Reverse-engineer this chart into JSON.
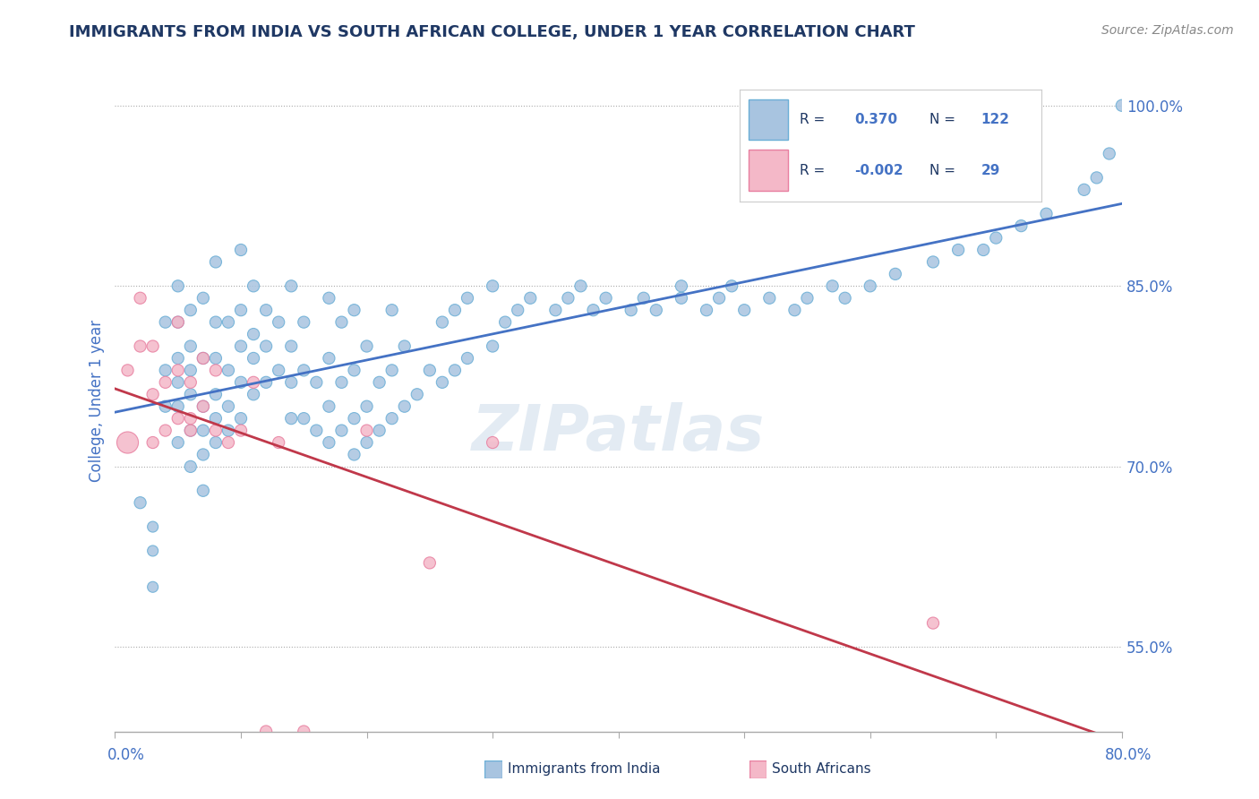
{
  "title": "IMMIGRANTS FROM INDIA VS SOUTH AFRICAN COLLEGE, UNDER 1 YEAR CORRELATION CHART",
  "source": "Source: ZipAtlas.com",
  "ylabel": "College, Under 1 year",
  "right_yticks": [
    55.0,
    70.0,
    85.0,
    100.0
  ],
  "xmin": 0.0,
  "xmax": 0.8,
  "ymin": 0.48,
  "ymax": 1.03,
  "blue_color": "#a8c4e0",
  "blue_edge": "#6aaed6",
  "pink_color": "#f4b8c8",
  "pink_edge": "#e87fa0",
  "trend_blue": "#4472c4",
  "trend_pink": "#c0384a",
  "watermark": "ZIPatlas",
  "title_color": "#1f3864",
  "axis_color": "#4472c4",
  "legend_box_blue": "#a8c4e0",
  "legend_box_pink": "#f4b8c8",
  "blue_x": [
    0.02,
    0.03,
    0.03,
    0.03,
    0.04,
    0.04,
    0.04,
    0.05,
    0.05,
    0.05,
    0.05,
    0.05,
    0.05,
    0.06,
    0.06,
    0.06,
    0.06,
    0.06,
    0.06,
    0.07,
    0.07,
    0.07,
    0.07,
    0.07,
    0.07,
    0.08,
    0.08,
    0.08,
    0.08,
    0.08,
    0.08,
    0.09,
    0.09,
    0.09,
    0.09,
    0.1,
    0.1,
    0.1,
    0.1,
    0.1,
    0.11,
    0.11,
    0.11,
    0.11,
    0.12,
    0.12,
    0.12,
    0.13,
    0.13,
    0.14,
    0.14,
    0.14,
    0.14,
    0.15,
    0.15,
    0.15,
    0.16,
    0.16,
    0.17,
    0.17,
    0.17,
    0.17,
    0.18,
    0.18,
    0.18,
    0.19,
    0.19,
    0.19,
    0.19,
    0.2,
    0.2,
    0.2,
    0.21,
    0.21,
    0.22,
    0.22,
    0.22,
    0.23,
    0.23,
    0.24,
    0.25,
    0.26,
    0.26,
    0.27,
    0.27,
    0.28,
    0.28,
    0.3,
    0.3,
    0.31,
    0.32,
    0.33,
    0.35,
    0.36,
    0.37,
    0.38,
    0.39,
    0.41,
    0.42,
    0.43,
    0.45,
    0.45,
    0.47,
    0.48,
    0.49,
    0.5,
    0.52,
    0.54,
    0.55,
    0.57,
    0.58,
    0.6,
    0.62,
    0.65,
    0.67,
    0.69,
    0.7,
    0.72,
    0.74,
    0.77,
    0.78,
    0.79,
    0.8
  ],
  "blue_y": [
    0.67,
    0.6,
    0.63,
    0.65,
    0.75,
    0.78,
    0.82,
    0.72,
    0.75,
    0.77,
    0.79,
    0.82,
    0.85,
    0.7,
    0.73,
    0.76,
    0.78,
    0.8,
    0.83,
    0.68,
    0.71,
    0.73,
    0.75,
    0.79,
    0.84,
    0.72,
    0.74,
    0.76,
    0.79,
    0.82,
    0.87,
    0.73,
    0.75,
    0.78,
    0.82,
    0.74,
    0.77,
    0.8,
    0.83,
    0.88,
    0.76,
    0.79,
    0.81,
    0.85,
    0.77,
    0.8,
    0.83,
    0.78,
    0.82,
    0.74,
    0.77,
    0.8,
    0.85,
    0.74,
    0.78,
    0.82,
    0.73,
    0.77,
    0.72,
    0.75,
    0.79,
    0.84,
    0.73,
    0.77,
    0.82,
    0.71,
    0.74,
    0.78,
    0.83,
    0.72,
    0.75,
    0.8,
    0.73,
    0.77,
    0.74,
    0.78,
    0.83,
    0.75,
    0.8,
    0.76,
    0.78,
    0.77,
    0.82,
    0.78,
    0.83,
    0.79,
    0.84,
    0.8,
    0.85,
    0.82,
    0.83,
    0.84,
    0.83,
    0.84,
    0.85,
    0.83,
    0.84,
    0.83,
    0.84,
    0.83,
    0.84,
    0.85,
    0.83,
    0.84,
    0.85,
    0.83,
    0.84,
    0.83,
    0.84,
    0.85,
    0.84,
    0.85,
    0.86,
    0.87,
    0.88,
    0.88,
    0.89,
    0.9,
    0.91,
    0.93,
    0.94,
    0.96,
    1.0
  ],
  "pink_x": [
    0.01,
    0.01,
    0.02,
    0.02,
    0.03,
    0.03,
    0.03,
    0.04,
    0.04,
    0.05,
    0.05,
    0.05,
    0.06,
    0.06,
    0.06,
    0.07,
    0.07,
    0.08,
    0.08,
    0.09,
    0.1,
    0.11,
    0.12,
    0.13,
    0.15,
    0.2,
    0.25,
    0.3,
    0.65
  ],
  "pink_y": [
    0.72,
    0.78,
    0.8,
    0.84,
    0.72,
    0.76,
    0.8,
    0.73,
    0.77,
    0.74,
    0.78,
    0.82,
    0.73,
    0.77,
    0.74,
    0.75,
    0.79,
    0.73,
    0.78,
    0.72,
    0.73,
    0.77,
    0.48,
    0.72,
    0.48,
    0.73,
    0.62,
    0.72,
    0.57
  ],
  "blue_sizes": [
    30,
    25,
    25,
    25,
    30,
    30,
    30,
    30,
    30,
    30,
    30,
    30,
    30,
    30,
    30,
    30,
    30,
    30,
    30,
    30,
    30,
    30,
    30,
    30,
    30,
    30,
    30,
    30,
    30,
    30,
    30,
    30,
    30,
    30,
    30,
    30,
    30,
    30,
    30,
    30,
    30,
    30,
    30,
    30,
    30,
    30,
    30,
    30,
    30,
    30,
    30,
    30,
    30,
    30,
    30,
    30,
    30,
    30,
    30,
    30,
    30,
    30,
    30,
    30,
    30,
    30,
    30,
    30,
    30,
    30,
    30,
    30,
    30,
    30,
    30,
    30,
    30,
    30,
    30,
    30,
    30,
    30,
    30,
    30,
    30,
    30,
    30,
    30,
    30,
    30,
    30,
    30,
    30,
    30,
    30,
    30,
    30,
    30,
    30,
    30,
    30,
    30,
    30,
    30,
    30,
    30,
    30,
    30,
    30,
    30,
    30,
    30,
    30,
    30,
    30,
    30,
    30,
    30,
    30,
    30,
    30,
    30,
    30
  ],
  "pink_sizes": [
    100,
    30,
    30,
    30,
    30,
    30,
    30,
    30,
    30,
    30,
    30,
    30,
    30,
    30,
    30,
    30,
    30,
    30,
    30,
    30,
    30,
    30,
    30,
    30,
    30,
    30,
    30,
    30,
    30
  ]
}
